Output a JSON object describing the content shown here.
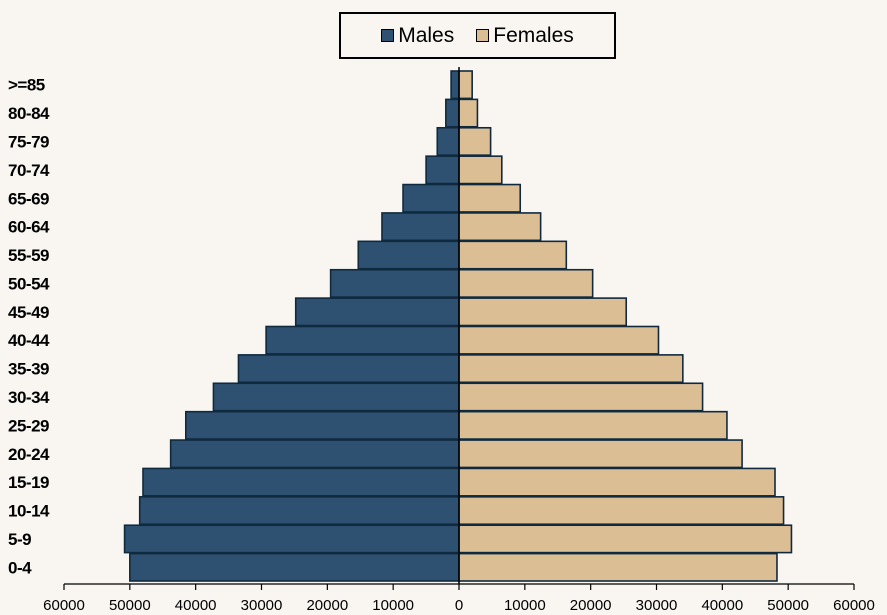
{
  "colors": {
    "males": "#2f5171",
    "females": "#dcbe95",
    "background": "#f9f6f2",
    "border": "#0f2a3f"
  },
  "legend": {
    "males_label": "Males",
    "females_label": "Females",
    "placement": "top-center"
  },
  "chart_data": {
    "type": "bar",
    "orientation": "horizontal",
    "categories": [
      ">=85",
      "80-84",
      "75-79",
      "70-74",
      "65-69",
      "60-64",
      "55-59",
      "50-54",
      "45-49",
      "40-44",
      "35-39",
      "30-34",
      "25-29",
      "20-24",
      "15-19",
      "10-14",
      "5-9",
      "0-4"
    ],
    "series": [
      {
        "name": "Males",
        "values": [
          1200,
          2000,
          3300,
          5000,
          8500,
          11700,
          15300,
          19500,
          24800,
          29300,
          33500,
          37300,
          41500,
          43800,
          48000,
          48500,
          50800,
          50000
        ]
      },
      {
        "name": "Females",
        "values": [
          2000,
          2800,
          4800,
          6500,
          9300,
          12400,
          16300,
          20300,
          25400,
          30300,
          34000,
          37000,
          40700,
          43000,
          48000,
          49300,
          50500,
          48300
        ]
      }
    ],
    "x_tick_labels": [
      "60000",
      "50000",
      "40000",
      "30000",
      "20000",
      "10000",
      "0",
      "10000",
      "20000",
      "30000",
      "40000",
      "50000",
      "60000"
    ],
    "xlim": [
      -60000,
      60000
    ],
    "grid": false
  }
}
